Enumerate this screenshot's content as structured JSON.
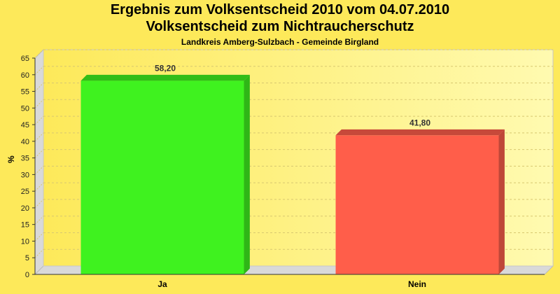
{
  "header": {
    "title_line1": "Ergebnis zum Volksentscheid 2010 vom 04.07.2010",
    "title_line2": "Volksentscheid zum Nichtraucherschutz",
    "subtitle": "Landkreis Amberg-Sulzbach - Gemeinde Birgland"
  },
  "chart_data": {
    "type": "bar",
    "title": "Ergebnis zum Volksentscheid 2010 vom 04.07.2010",
    "subtitle": "Landkreis Amberg-Sulzbach - Gemeinde Birgland",
    "xlabel": "",
    "ylabel": "%",
    "ylim": [
      0,
      65
    ],
    "yticks": [
      0,
      5,
      10,
      15,
      20,
      25,
      30,
      35,
      40,
      45,
      50,
      55,
      60,
      65
    ],
    "categories": [
      "Ja",
      "Nein"
    ],
    "values": [
      58.2,
      41.8
    ],
    "value_labels": [
      "58,20",
      "41,80"
    ],
    "colors": [
      "#3ff21f",
      "#ff5e4a"
    ],
    "grid": true,
    "legend": "none"
  },
  "colors": {
    "background": "#fde95a",
    "plot_background": "#fff59a"
  }
}
